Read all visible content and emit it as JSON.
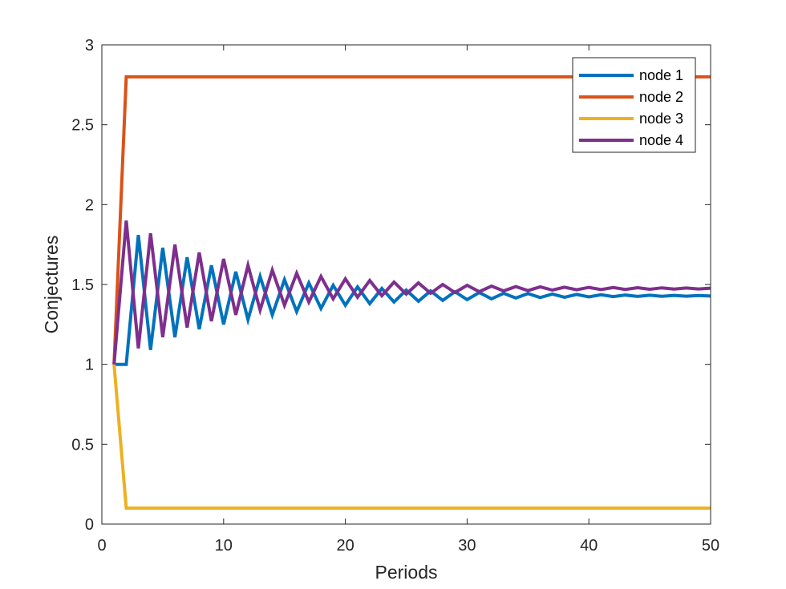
{
  "chart_data": {
    "type": "line",
    "xlabel": "Periods",
    "ylabel": "Conjectures",
    "xlim": [
      0,
      50
    ],
    "ylim": [
      0,
      3
    ],
    "xticks": [
      0,
      10,
      20,
      30,
      40,
      50
    ],
    "yticks": [
      0,
      0.5,
      1,
      1.5,
      2,
      2.5,
      3
    ],
    "xtick_labels": [
      "0",
      "10",
      "20",
      "30",
      "40",
      "50"
    ],
    "ytick_labels": [
      "0",
      "0.5",
      "1",
      "1.5",
      "2",
      "2.5",
      "3"
    ],
    "grid": false,
    "legend_position": "top-right",
    "x": [
      1,
      2,
      3,
      4,
      5,
      6,
      7,
      8,
      9,
      10,
      11,
      12,
      13,
      14,
      15,
      16,
      17,
      18,
      19,
      20,
      21,
      22,
      23,
      24,
      25,
      26,
      27,
      28,
      29,
      30,
      31,
      32,
      33,
      34,
      35,
      36,
      37,
      38,
      39,
      40,
      41,
      42,
      43,
      44,
      45,
      46,
      47,
      48,
      49,
      50
    ],
    "series": [
      {
        "name": "node 1",
        "color": "#0072BD",
        "values": [
          1.0,
          1.0,
          1.81,
          1.09,
          1.73,
          1.17,
          1.67,
          1.22,
          1.62,
          1.25,
          1.58,
          1.28,
          1.55,
          1.31,
          1.53,
          1.33,
          1.51,
          1.35,
          1.495,
          1.37,
          1.485,
          1.38,
          1.475,
          1.39,
          1.465,
          1.395,
          1.46,
          1.4,
          1.455,
          1.405,
          1.45,
          1.41,
          1.445,
          1.415,
          1.443,
          1.418,
          1.44,
          1.42,
          1.438,
          1.422,
          1.436,
          1.424,
          1.434,
          1.425,
          1.433,
          1.426,
          1.432,
          1.427,
          1.431,
          1.428
        ]
      },
      {
        "name": "node 2",
        "color": "#D95319",
        "values": [
          1.0,
          2.8,
          2.8,
          2.8,
          2.8,
          2.8,
          2.8,
          2.8,
          2.8,
          2.8,
          2.8,
          2.8,
          2.8,
          2.8,
          2.8,
          2.8,
          2.8,
          2.8,
          2.8,
          2.8,
          2.8,
          2.8,
          2.8,
          2.8,
          2.8,
          2.8,
          2.8,
          2.8,
          2.8,
          2.8,
          2.8,
          2.8,
          2.8,
          2.8,
          2.8,
          2.8,
          2.8,
          2.8,
          2.8,
          2.8,
          2.8,
          2.8,
          2.8,
          2.8,
          2.8,
          2.8,
          2.8,
          2.8,
          2.8,
          2.8
        ]
      },
      {
        "name": "node 3",
        "color": "#EDB120",
        "values": [
          1.0,
          0.1,
          0.1,
          0.1,
          0.1,
          0.1,
          0.1,
          0.1,
          0.1,
          0.1,
          0.1,
          0.1,
          0.1,
          0.1,
          0.1,
          0.1,
          0.1,
          0.1,
          0.1,
          0.1,
          0.1,
          0.1,
          0.1,
          0.1,
          0.1,
          0.1,
          0.1,
          0.1,
          0.1,
          0.1,
          0.1,
          0.1,
          0.1,
          0.1,
          0.1,
          0.1,
          0.1,
          0.1,
          0.1,
          0.1,
          0.1,
          0.1,
          0.1,
          0.1,
          0.1,
          0.1,
          0.1,
          0.1,
          0.1,
          0.1
        ]
      },
      {
        "name": "node 4",
        "color": "#7E2F8E",
        "values": [
          1.0,
          1.9,
          1.1,
          1.82,
          1.17,
          1.75,
          1.23,
          1.7,
          1.27,
          1.66,
          1.31,
          1.62,
          1.34,
          1.59,
          1.37,
          1.57,
          1.39,
          1.55,
          1.41,
          1.535,
          1.42,
          1.525,
          1.43,
          1.515,
          1.44,
          1.51,
          1.445,
          1.5,
          1.45,
          1.495,
          1.455,
          1.49,
          1.46,
          1.487,
          1.462,
          1.485,
          1.465,
          1.483,
          1.467,
          1.482,
          1.468,
          1.481,
          1.469,
          1.48,
          1.47,
          1.479,
          1.471,
          1.478,
          1.472,
          1.477
        ]
      }
    ]
  }
}
